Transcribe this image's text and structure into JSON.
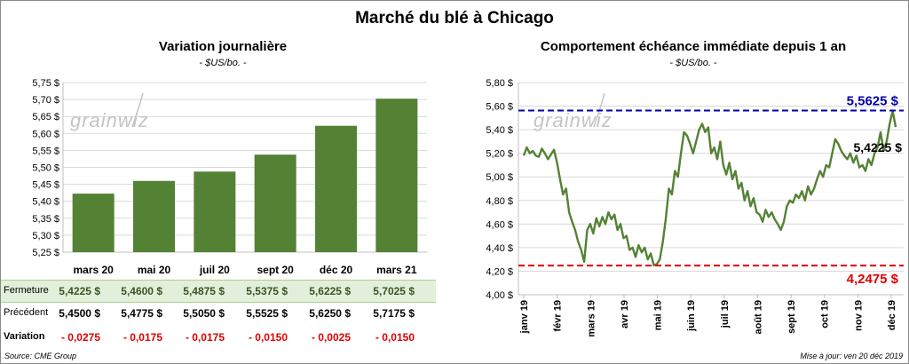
{
  "page": {
    "title": "Marché du blé à Chicago",
    "source": "Source: CME Group",
    "updated": "Mise à jour: ven 20 déc 2019",
    "watermark": "grainwiz"
  },
  "left": {
    "title": "Variation  journalière",
    "unit": "- $US/bo. -",
    "table": {
      "rows": [
        {
          "label": "Fermeture",
          "values": [
            "5,4225  $",
            "5,4600  $",
            "5,4875  $",
            "5,5375  $",
            "5,6225  $",
            "5,7025  $"
          ]
        },
        {
          "label": "Précédent",
          "values": [
            "5,4500  $",
            "5,4775  $",
            "5,5050  $",
            "5,5525  $",
            "5,6250  $",
            "5,7175  $"
          ]
        },
        {
          "label": "Variation",
          "values": [
            "- 0,0275",
            "- 0,0175",
            "- 0,0175",
            "- 0,0150",
            "- 0,0025",
            "- 0,0150"
          ]
        }
      ]
    }
  },
  "right": {
    "title": "Comportement  échéance immédiate depuis 1 an",
    "unit": "- $US/bo. -"
  },
  "colors": {
    "bar": "#548235",
    "line": "#548235",
    "max": "#0000a8",
    "min": "#e00000",
    "grid": "#d9d9d9"
  },
  "chart_data": [
    {
      "type": "bar",
      "title": "Variation  journalière",
      "ylabel": "- $US/bo. -",
      "categories": [
        "mars 20",
        "mai 20",
        "juil 20",
        "sept 20",
        "déc 20",
        "mars 21"
      ],
      "values": [
        5.4225,
        5.46,
        5.4875,
        5.5375,
        5.6225,
        5.7025
      ],
      "ylim": [
        5.25,
        5.75
      ],
      "yticks": [
        5.25,
        5.3,
        5.35,
        5.4,
        5.45,
        5.5,
        5.55,
        5.6,
        5.65,
        5.7,
        5.75
      ],
      "ytick_labels": [
        "5,25 $",
        "5,30 $",
        "5,35 $",
        "5,40 $",
        "5,45 $",
        "5,50 $",
        "5,55 $",
        "5,60 $",
        "5,65 $",
        "5,70 $",
        "5,75 $"
      ],
      "grid": true
    },
    {
      "type": "line",
      "title": "Comportement  échéance immédiate depuis 1 an",
      "ylabel": "- $US/bo. -",
      "x_labels": [
        "janv 19",
        "févr 19",
        "mars 19",
        "avr 19",
        "mai 19",
        "juin 19",
        "juil 19",
        "août 19",
        "sept 19",
        "oct 19",
        "nov 19",
        "déc 19"
      ],
      "ylim": [
        4.0,
        5.8
      ],
      "yticks": [
        4.0,
        4.2,
        4.4,
        4.6,
        4.8,
        5.0,
        5.2,
        5.4,
        5.6,
        5.8
      ],
      "ytick_labels": [
        "4,00 $",
        "4,20 $",
        "4,40 $",
        "4,60 $",
        "4,80 $",
        "5,00 $",
        "5,20 $",
        "5,40 $",
        "5,60 $",
        "5,80 $"
      ],
      "series": [
        {
          "name": "échéance immédiate",
          "values": [
            5.18,
            5.25,
            5.2,
            5.22,
            5.18,
            5.17,
            5.24,
            5.2,
            5.15,
            5.19,
            5.23,
            5.12,
            4.98,
            4.85,
            4.9,
            4.7,
            4.62,
            4.55,
            4.45,
            4.38,
            4.28,
            4.55,
            4.6,
            4.52,
            4.65,
            4.58,
            4.66,
            4.6,
            4.7,
            4.64,
            4.68,
            4.55,
            4.6,
            4.48,
            4.5,
            4.38,
            4.4,
            4.32,
            4.42,
            4.36,
            4.4,
            4.3,
            4.35,
            4.25,
            4.26,
            4.3,
            4.45,
            4.65,
            4.9,
            4.85,
            5.05,
            5.0,
            5.2,
            5.38,
            5.35,
            5.28,
            5.2,
            5.3,
            5.4,
            5.45,
            5.38,
            5.42,
            5.2,
            5.25,
            5.15,
            5.3,
            5.1,
            5.02,
            5.12,
            4.98,
            5.05,
            4.9,
            4.95,
            4.8,
            4.88,
            4.75,
            4.82,
            4.7,
            4.68,
            4.62,
            4.72,
            4.66,
            4.7,
            4.64,
            4.6,
            4.55,
            4.62,
            4.75,
            4.8,
            4.78,
            4.85,
            4.82,
            4.88,
            4.8,
            4.92,
            4.85,
            4.9,
            4.98,
            5.05,
            5.0,
            5.1,
            5.08,
            5.2,
            5.32,
            5.28,
            5.22,
            5.18,
            5.15,
            5.2,
            5.12,
            5.18,
            5.08,
            5.1,
            5.05,
            5.15,
            5.1,
            5.2,
            5.25,
            5.38,
            5.22,
            5.3,
            5.45,
            5.56,
            5.4225
          ]
        }
      ],
      "reference_lines": [
        {
          "label": "5,5625 $",
          "value": 5.5625,
          "style": "dashed",
          "color": "#0000a8"
        },
        {
          "label": "4,2475 $",
          "value": 4.2475,
          "style": "dashed",
          "color": "#e00000"
        }
      ],
      "annotations": [
        {
          "label": "5,4225 $",
          "value": 5.4225
        }
      ],
      "grid": true
    }
  ]
}
